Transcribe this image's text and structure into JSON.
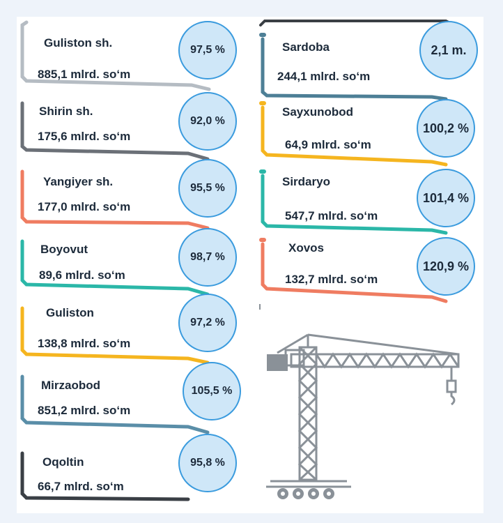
{
  "left_items": [
    {
      "name": "Guliston sh.",
      "amount": "885,1 mlrd. so‘m",
      "percent": "97,5 %",
      "color": "#b5bcc3"
    },
    {
      "name": "Shirin sh.",
      "amount": "175,6 mlrd. so‘m",
      "percent": "92,0 %",
      "color": "#6b7077"
    },
    {
      "name": "Yangiyer sh.",
      "amount": "177,0 mlrd. so‘m",
      "percent": "95,5 %",
      "color": "#ef7c61"
    },
    {
      "name": "Boyovut",
      "amount": "89,6 mlrd. so‘m",
      "percent": "98,7 %",
      "color": "#2bb7a8"
    },
    {
      "name": "Guliston",
      "amount": "138,8 mlrd. so‘m",
      "percent": "97,2 %",
      "color": "#f5b51f"
    },
    {
      "name": "Mirzaobod",
      "amount": "851,2 mlrd. so‘m",
      "percent": "105,5 %",
      "color": "#5a8ea8"
    },
    {
      "name": "Oqoltin",
      "amount": "66,7 mlrd. so‘m",
      "percent": "95,8 %",
      "color": "#3a3f45"
    }
  ],
  "right_items": [
    {
      "name": "Sardoba",
      "amount": "244,1 mlrd. so‘m",
      "percent": "2,1 m.",
      "color": "#4d7f96"
    },
    {
      "name": "Sayxunobod",
      "amount": "64,9 mlrd. so‘m",
      "percent": "100,2 %",
      "color": "#f5b51f"
    },
    {
      "name": "Sirdaryo",
      "amount": "547,7 mlrd. so‘m",
      "percent": "101,4 %",
      "color": "#2bb7a8"
    },
    {
      "name": "Xovos",
      "amount": "132,7 mlrd. so‘m",
      "percent": "120,9 %",
      "color": "#ef7c61"
    }
  ],
  "colors": {
    "circle_fill": "#cfe7f8",
    "circle_border": "#3a9bde",
    "crane": "#8a9198",
    "top_right_bracket": "#3a3f45"
  },
  "icons": [
    "crane-icon"
  ]
}
